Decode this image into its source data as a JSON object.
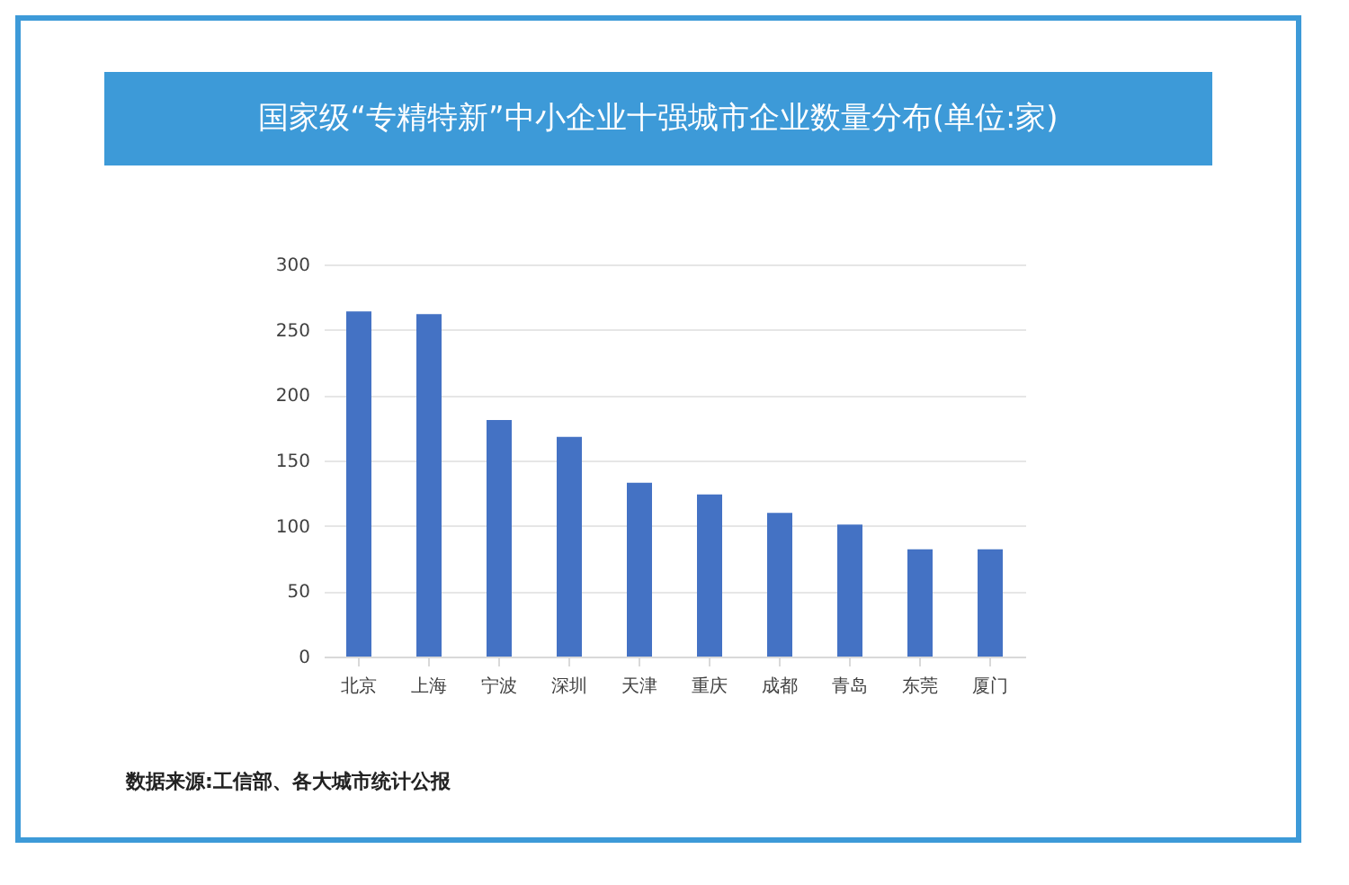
{
  "chart_data": {
    "type": "bar",
    "title": "国家级“专精特新”中小企业十强城市企业数量分布(单位:家)",
    "categories": [
      "北京",
      "上海",
      "宁波",
      "深圳",
      "天津",
      "重庆",
      "成都",
      "青岛",
      "东莞",
      "厦门"
    ],
    "values": [
      264,
      262,
      181,
      168,
      133,
      124,
      110,
      101,
      82,
      82
    ],
    "color": "#4472c4",
    "ylim": [
      0,
      300
    ],
    "yticks": [
      0,
      50,
      100,
      150,
      200,
      250,
      300
    ],
    "grid": "y",
    "annotations": [
      "数据来源:工信部、各大城市统计公报"
    ]
  }
}
